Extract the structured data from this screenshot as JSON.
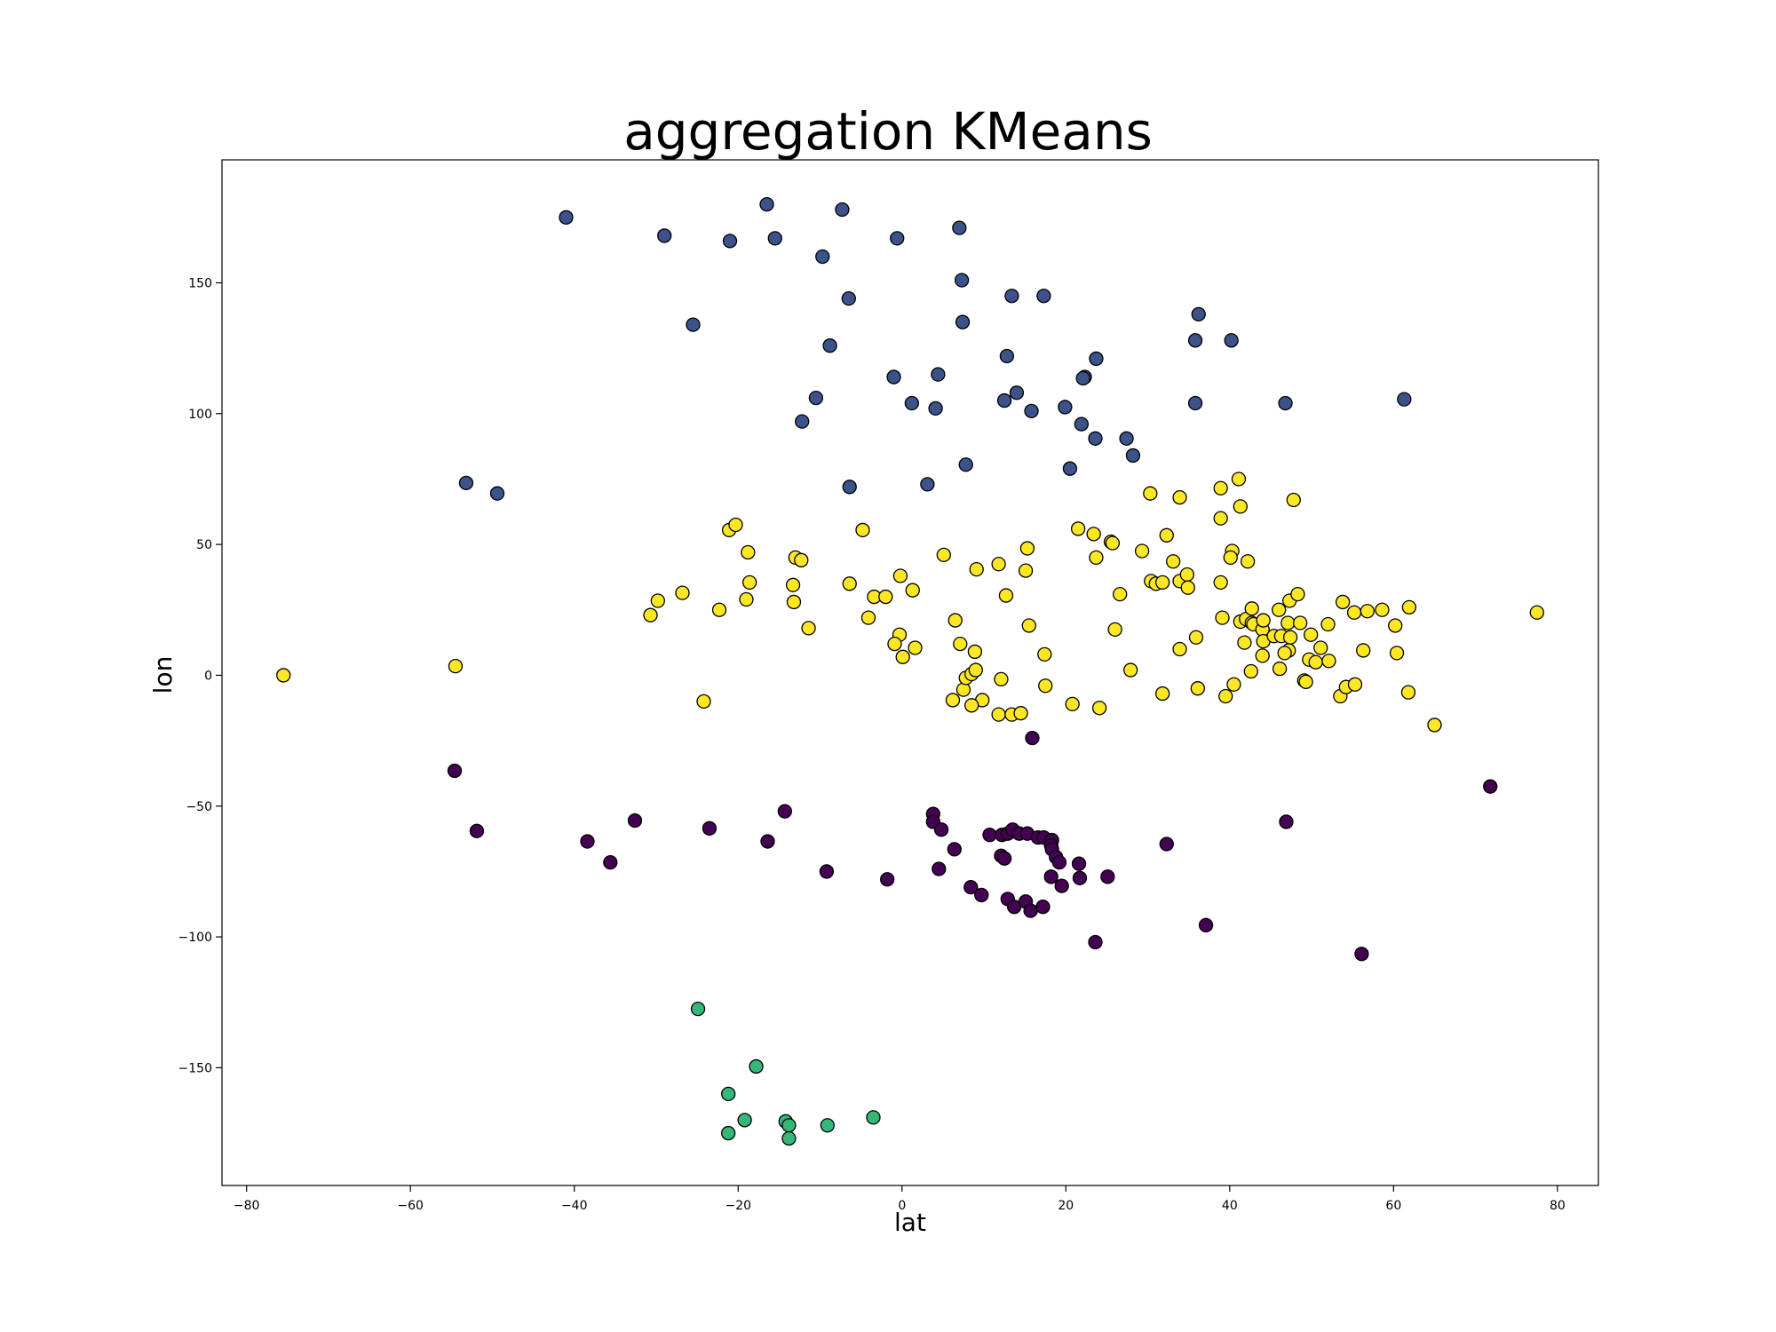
{
  "chart_data": {
    "type": "scatter",
    "title": "aggregation KMeans",
    "xlabel": "lat",
    "ylabel": "lon",
    "xlim": [
      -83,
      85
    ],
    "ylim": [
      -195,
      197
    ],
    "xticks": [
      -80,
      -60,
      -40,
      -20,
      0,
      20,
      40,
      60,
      80
    ],
    "yticks": [
      -150,
      -100,
      -50,
      0,
      50,
      100,
      150
    ],
    "grid": false,
    "legend": "none",
    "clusters": [
      {
        "color": "#3b528b",
        "points": [
          [
            -41,
            175
          ],
          [
            -29,
            168
          ],
          [
            -21,
            166
          ],
          [
            -16.5,
            180
          ],
          [
            -15.5,
            167
          ],
          [
            -7.3,
            178
          ],
          [
            -9.7,
            160
          ],
          [
            -0.6,
            167
          ],
          [
            7,
            171
          ],
          [
            -25.5,
            134
          ],
          [
            -6.5,
            144
          ],
          [
            7.3,
            151
          ],
          [
            -8.8,
            126
          ],
          [
            7.4,
            135
          ],
          [
            13.4,
            145
          ],
          [
            17.3,
            145
          ],
          [
            12.8,
            122
          ],
          [
            -1,
            114
          ],
          [
            4.4,
            115
          ],
          [
            22.3,
            114
          ],
          [
            22.1,
            113.5
          ],
          [
            23.7,
            121
          ],
          [
            -10.5,
            106
          ],
          [
            1.2,
            104
          ],
          [
            4.1,
            102
          ],
          [
            12.5,
            105
          ],
          [
            14,
            108
          ],
          [
            15.8,
            101
          ],
          [
            19.9,
            102.5
          ],
          [
            -12.2,
            97
          ],
          [
            21.9,
            96
          ],
          [
            23.6,
            90.5
          ],
          [
            27.4,
            90.5
          ],
          [
            28.2,
            84
          ],
          [
            7.8,
            80.5
          ],
          [
            -6.4,
            72
          ],
          [
            3.1,
            73
          ],
          [
            20.5,
            79
          ],
          [
            -53.2,
            73.5
          ],
          [
            -49.4,
            69.5
          ],
          [
            36.2,
            138
          ],
          [
            35.8,
            128
          ],
          [
            40.2,
            128
          ],
          [
            35.8,
            104
          ],
          [
            46.8,
            104
          ],
          [
            61.3,
            105.5
          ]
        ]
      },
      {
        "color": "#fde725",
        "points": [
          [
            -75.5,
            0
          ],
          [
            -54.5,
            3.5
          ],
          [
            -24.2,
            -10
          ],
          [
            -30.7,
            23
          ],
          [
            -29.8,
            28.5
          ],
          [
            -26.8,
            31.5
          ],
          [
            -22.3,
            25
          ],
          [
            -21.1,
            55.5
          ],
          [
            -20.3,
            57.5
          ],
          [
            -18.8,
            47
          ],
          [
            -18.6,
            35.5
          ],
          [
            -19,
            29
          ],
          [
            -13,
            45
          ],
          [
            -12.3,
            44
          ],
          [
            -13.3,
            34.5
          ],
          [
            -13.2,
            28
          ],
          [
            -11.4,
            18
          ],
          [
            -6.4,
            35
          ],
          [
            -4.8,
            55.5
          ],
          [
            -4.1,
            22
          ],
          [
            -3.4,
            30
          ],
          [
            -2,
            30
          ],
          [
            -0.2,
            38
          ],
          [
            1.3,
            32.5
          ],
          [
            -0.3,
            15.5
          ],
          [
            -0.9,
            12
          ],
          [
            0.1,
            7
          ],
          [
            1.6,
            10.5
          ],
          [
            5.1,
            46
          ],
          [
            6.5,
            21
          ],
          [
            7.1,
            12
          ],
          [
            9.1,
            40.5
          ],
          [
            11.8,
            42.5
          ],
          [
            12.7,
            30.5
          ],
          [
            15.3,
            48.5
          ],
          [
            15.1,
            40
          ],
          [
            15.5,
            19
          ],
          [
            17.4,
            8
          ],
          [
            17.5,
            -4
          ],
          [
            21.5,
            56
          ],
          [
            23.4,
            54
          ],
          [
            25.5,
            51
          ],
          [
            25.7,
            50.5
          ],
          [
            23.7,
            45
          ],
          [
            29.3,
            47.5
          ],
          [
            26.6,
            31
          ],
          [
            26,
            17.5
          ],
          [
            27.9,
            2
          ],
          [
            30.3,
            69.5
          ],
          [
            33.9,
            68
          ],
          [
            32.3,
            53.5
          ],
          [
            33.1,
            43.5
          ],
          [
            30.4,
            36
          ],
          [
            31,
            35
          ],
          [
            31.8,
            35.5
          ],
          [
            33.9,
            36
          ],
          [
            34.8,
            38.5
          ],
          [
            34.9,
            33.5
          ],
          [
            35.9,
            14.5
          ],
          [
            33.9,
            10
          ],
          [
            31.8,
            -7
          ],
          [
            36.1,
            -5
          ],
          [
            38.9,
            71.5
          ],
          [
            41.1,
            75
          ],
          [
            41.3,
            64.5
          ],
          [
            38.9,
            60
          ],
          [
            40.3,
            47.5
          ],
          [
            40.1,
            45
          ],
          [
            42.2,
            43.5
          ],
          [
            38.9,
            35.5
          ],
          [
            39.1,
            22
          ],
          [
            41.3,
            20.5
          ],
          [
            42,
            21.5
          ],
          [
            42.7,
            25.5
          ],
          [
            42.7,
            20
          ],
          [
            42.9,
            19.5
          ],
          [
            44,
            17.5
          ],
          [
            44.1,
            21
          ],
          [
            44.1,
            13
          ],
          [
            41.8,
            12.5
          ],
          [
            44,
            7.5
          ],
          [
            42.6,
            1.5
          ],
          [
            40.5,
            -3.5
          ],
          [
            39.5,
            -8
          ],
          [
            47.8,
            67
          ],
          [
            46,
            25
          ],
          [
            47.3,
            28.5
          ],
          [
            48.3,
            31
          ],
          [
            45.4,
            15
          ],
          [
            46.3,
            15
          ],
          [
            47.4,
            14.5
          ],
          [
            47.1,
            20
          ],
          [
            48.6,
            20
          ],
          [
            49.9,
            15.5
          ],
          [
            47.2,
            9.5
          ],
          [
            46.7,
            8.5
          ],
          [
            46.1,
            2.5
          ],
          [
            49.7,
            6
          ],
          [
            50.5,
            5
          ],
          [
            51.1,
            10.5
          ],
          [
            52,
            19.5
          ],
          [
            52.1,
            5.5
          ],
          [
            49.1,
            -2
          ],
          [
            49.3,
            -2.5
          ],
          [
            53.5,
            -8
          ],
          [
            54.2,
            -4.5
          ],
          [
            55.3,
            -3.5
          ],
          [
            53.8,
            28
          ],
          [
            55.2,
            24
          ],
          [
            56.8,
            24.5
          ],
          [
            58.6,
            25
          ],
          [
            56.3,
            9.5
          ],
          [
            60.2,
            19
          ],
          [
            60.4,
            8.5
          ],
          [
            61.9,
            26
          ],
          [
            61.8,
            -6.5
          ],
          [
            65,
            -19
          ],
          [
            77.5,
            24
          ],
          [
            6.2,
            -9.5
          ],
          [
            7.5,
            -5.5
          ],
          [
            7.8,
            -1
          ],
          [
            8.5,
            0.5
          ],
          [
            9,
            2
          ],
          [
            8.9,
            9
          ],
          [
            9.8,
            -9.5
          ],
          [
            8.5,
            -11.5
          ],
          [
            11.8,
            -15
          ],
          [
            12.1,
            -1.5
          ],
          [
            13.4,
            -15
          ],
          [
            14.5,
            -14.5
          ],
          [
            20.8,
            -11
          ],
          [
            24.1,
            -12.5
          ]
        ]
      },
      {
        "color": "#440154",
        "points": [
          [
            -54.6,
            -36.5
          ],
          [
            -51.9,
            -59.5
          ],
          [
            -38.4,
            -63.5
          ],
          [
            -35.6,
            -71.5
          ],
          [
            -32.6,
            -55.5
          ],
          [
            -23.5,
            -58.5
          ],
          [
            -16.4,
            -63.5
          ],
          [
            -14.3,
            -52
          ],
          [
            -9.2,
            -75
          ],
          [
            -1.8,
            -78
          ],
          [
            3.8,
            -53
          ],
          [
            3.8,
            -56
          ],
          [
            4.8,
            -59
          ],
          [
            6.4,
            -66.5
          ],
          [
            4.5,
            -74
          ],
          [
            8.4,
            -81
          ],
          [
            9.7,
            -84
          ],
          [
            10.7,
            -61
          ],
          [
            12.2,
            -61
          ],
          [
            12.9,
            -60.5
          ],
          [
            13.5,
            -59
          ],
          [
            14.3,
            -60.5
          ],
          [
            15.3,
            -60.5
          ],
          [
            16.6,
            -62
          ],
          [
            17.3,
            -62
          ],
          [
            18.3,
            -63
          ],
          [
            18.2,
            -65
          ],
          [
            18.3,
            -66.5
          ],
          [
            18.8,
            -69.5
          ],
          [
            19.2,
            -71.5
          ],
          [
            12.1,
            -69
          ],
          [
            12.5,
            -70
          ],
          [
            12.9,
            -85.5
          ],
          [
            13.7,
            -88.5
          ],
          [
            15.1,
            -86.5
          ],
          [
            15.7,
            -90
          ],
          [
            17.2,
            -88.5
          ],
          [
            18.2,
            -77
          ],
          [
            19.5,
            -80.5
          ],
          [
            21.6,
            -72
          ],
          [
            21.7,
            -77.5
          ],
          [
            25.1,
            -77
          ],
          [
            15.9,
            -24
          ],
          [
            23.6,
            -102
          ],
          [
            32.3,
            -64.5
          ],
          [
            37.1,
            -95.5
          ],
          [
            46.9,
            -56
          ],
          [
            56.1,
            -106.5
          ],
          [
            71.8,
            -42.5
          ]
        ]
      },
      {
        "color": "#35b779",
        "points": [
          [
            -24.9,
            -127.5
          ],
          [
            -17.8,
            -149.5
          ],
          [
            -21.2,
            -160
          ],
          [
            -19.2,
            -170
          ],
          [
            -21.2,
            -175
          ],
          [
            -14.2,
            -170.5
          ],
          [
            -13.8,
            -172
          ],
          [
            -13.8,
            -177
          ],
          [
            -9.1,
            -172
          ],
          [
            -3.5,
            -169
          ]
        ]
      }
    ]
  }
}
